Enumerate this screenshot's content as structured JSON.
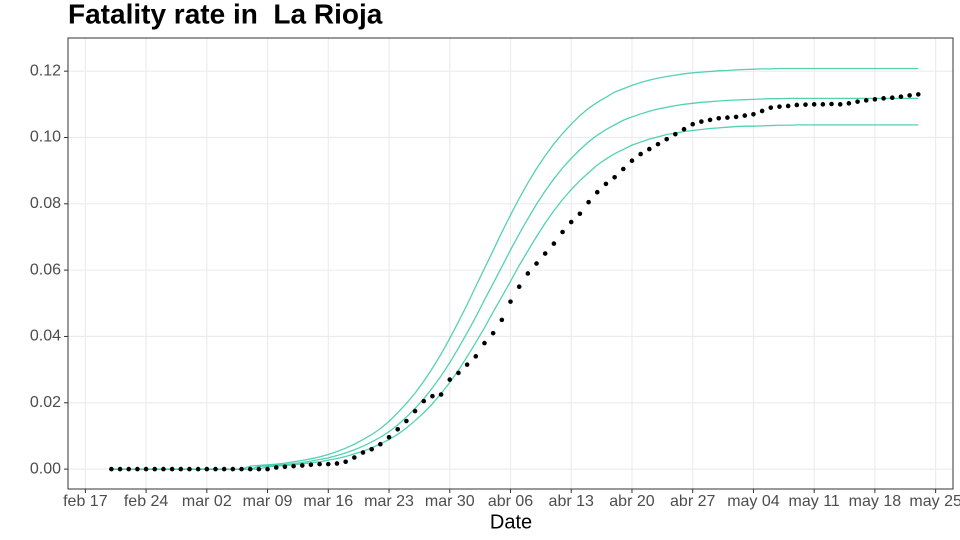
{
  "chart_data": {
    "type": "line",
    "title": "Fatality rate in  La Rioja",
    "x_label": "Date",
    "x": [
      "02-20",
      "02-21",
      "02-22",
      "02-23",
      "02-24",
      "02-25",
      "02-26",
      "02-27",
      "02-28",
      "02-29",
      "03-01",
      "03-02",
      "03-03",
      "03-04",
      "03-05",
      "03-06",
      "03-07",
      "03-08",
      "03-09",
      "03-10",
      "03-11",
      "03-12",
      "03-13",
      "03-14",
      "03-15",
      "03-16",
      "03-17",
      "03-18",
      "03-19",
      "03-20",
      "03-21",
      "03-22",
      "03-23",
      "03-24",
      "03-25",
      "03-26",
      "03-27",
      "03-28",
      "03-29",
      "03-30",
      "03-31",
      "04-01",
      "04-02",
      "04-03",
      "04-04",
      "04-05",
      "04-06",
      "04-07",
      "04-08",
      "04-09",
      "04-10",
      "04-11",
      "04-12",
      "04-13",
      "04-14",
      "04-15",
      "04-16",
      "04-17",
      "04-18",
      "04-19",
      "04-20",
      "04-21",
      "04-22",
      "04-23",
      "04-24",
      "04-25",
      "04-26",
      "04-27",
      "04-28",
      "04-29",
      "04-30",
      "05-01",
      "05-02",
      "05-03",
      "05-04",
      "05-05",
      "05-06",
      "05-07",
      "05-08",
      "05-09",
      "05-10",
      "05-11",
      "05-12",
      "05-13",
      "05-14",
      "05-15",
      "05-16",
      "05-17",
      "05-18",
      "05-19",
      "05-20",
      "05-21",
      "05-22",
      "05-23"
    ],
    "series": [
      {
        "color": "#19c39b",
        "mode": "lines",
        "values": [
          0,
          0,
          0,
          0,
          0,
          0,
          0,
          0,
          0,
          0,
          0,
          0,
          0,
          0,
          0,
          0,
          0.0009,
          0.0011,
          0.0013,
          0.0015,
          0.0018,
          0.0022,
          0.0026,
          0.0031,
          0.0037,
          0.0044,
          0.0053,
          0.0063,
          0.0075,
          0.0089,
          0.0104,
          0.0122,
          0.0144,
          0.017,
          0.0198,
          0.0229,
          0.0265,
          0.0304,
          0.0347,
          0.0394,
          0.0444,
          0.0496,
          0.0551,
          0.0605,
          0.0659,
          0.0714,
          0.0766,
          0.0816,
          0.0863,
          0.0906,
          0.0945,
          0.0981,
          0.1012,
          0.104,
          0.1066,
          0.1088,
          0.1106,
          0.1121,
          0.1137,
          0.1147,
          0.1157,
          0.1166,
          0.1173,
          0.1179,
          0.1184,
          0.1188,
          0.1192,
          0.1195,
          0.1197,
          0.1199,
          0.1201,
          0.1202,
          0.1204,
          0.1205,
          0.1206,
          0.1207,
          0.1207,
          0.1208,
          0.1208,
          0.1208,
          0.1208,
          0.1208,
          0.1208,
          0.1208,
          0.1208,
          0.1208,
          0.1208,
          0.1208,
          0.1208,
          0.1208,
          0.1208,
          0.1208,
          0.1208,
          0.1208
        ]
      },
      {
        "color": "#19c39b",
        "mode": "lines",
        "values": [
          0,
          0,
          0,
          0,
          0,
          0,
          0,
          0,
          0,
          0,
          0,
          0,
          0,
          0,
          0,
          0,
          0,
          0.0008,
          0.001,
          0.0012,
          0.0014,
          0.0017,
          0.002,
          0.0024,
          0.0029,
          0.0034,
          0.0041,
          0.0049,
          0.0058,
          0.0069,
          0.0082,
          0.0096,
          0.0113,
          0.0133,
          0.0157,
          0.0183,
          0.0212,
          0.0245,
          0.0281,
          0.0321,
          0.0365,
          0.0411,
          0.0459,
          0.051,
          0.056,
          0.061,
          0.0661,
          0.0709,
          0.0755,
          0.0799,
          0.0839,
          0.0875,
          0.0908,
          0.0937,
          0.0963,
          0.0987,
          0.1007,
          0.1024,
          0.1038,
          0.1052,
          0.1062,
          0.1071,
          0.1079,
          0.1086,
          0.1091,
          0.1096,
          0.11,
          0.1103,
          0.1106,
          0.1108,
          0.111,
          0.1112,
          0.1113,
          0.1114,
          0.1115,
          0.1116,
          0.1117,
          0.1117,
          0.1118,
          0.1118,
          0.1118,
          0.1118,
          0.1118,
          0.1118,
          0.1118,
          0.1118,
          0.1118,
          0.1118,
          0.1118,
          0.1118,
          0.1118,
          0.1118,
          0.1118,
          0.1118
        ]
      },
      {
        "color": "#19c39b",
        "mode": "lines",
        "values": [
          0,
          0,
          0,
          0,
          0,
          0,
          0,
          0,
          0,
          0,
          0,
          0,
          0,
          0,
          0,
          0,
          0,
          0,
          0.0007,
          0.0009,
          0.0011,
          0.0013,
          0.0016,
          0.0019,
          0.0022,
          0.0027,
          0.0032,
          0.0038,
          0.0046,
          0.0054,
          0.0064,
          0.0076,
          0.0089,
          0.0105,
          0.0124,
          0.0146,
          0.017,
          0.0197,
          0.0228,
          0.0261,
          0.0298,
          0.0339,
          0.0382,
          0.0426,
          0.0474,
          0.052,
          0.0566,
          0.0614,
          0.0658,
          0.0701,
          0.0742,
          0.0779,
          0.0813,
          0.0843,
          0.087,
          0.0894,
          0.0917,
          0.0935,
          0.0951,
          0.0964,
          0.0977,
          0.0986,
          0.0995,
          0.1002,
          0.1009,
          0.1013,
          0.1018,
          0.1021,
          0.1024,
          0.1027,
          0.1029,
          0.1031,
          0.1033,
          0.1034,
          0.1034,
          0.1035,
          0.1036,
          0.1037,
          0.1037,
          0.1038,
          0.1038,
          0.1038,
          0.1038,
          0.1038,
          0.1038,
          0.1038,
          0.1038,
          0.1038,
          0.1038,
          0.1038,
          0.1038,
          0.1038,
          0.1038,
          0.1038
        ]
      },
      {
        "color": "#000000",
        "mode": "markers",
        "values": [
          0,
          0,
          0,
          0,
          0,
          0,
          0,
          0,
          0,
          0,
          0,
          0,
          0,
          0,
          0,
          0,
          0,
          0,
          0,
          0.0005,
          0.0007,
          0.0009,
          0.0011,
          0.0013,
          0.0015,
          0.0015,
          0.0017,
          0.0022,
          0.0035,
          0.005,
          0.006,
          0.0075,
          0.0096,
          0.012,
          0.0145,
          0.0175,
          0.0205,
          0.022,
          0.0225,
          0.027,
          0.029,
          0.0315,
          0.034,
          0.038,
          0.041,
          0.045,
          0.0505,
          0.055,
          0.059,
          0.062,
          0.065,
          0.068,
          0.0715,
          0.0745,
          0.077,
          0.0805,
          0.0835,
          0.086,
          0.088,
          0.0905,
          0.093,
          0.095,
          0.0965,
          0.098,
          0.0995,
          0.101,
          0.1025,
          0.104,
          0.1048,
          0.1053,
          0.1058,
          0.106,
          0.1062,
          0.1066,
          0.107,
          0.108,
          0.109,
          0.1093,
          0.1095,
          0.1098,
          0.1099,
          0.11,
          0.11,
          0.1101,
          0.11,
          0.1103,
          0.1108,
          0.1112,
          0.1115,
          0.1118,
          0.112,
          0.1123,
          0.1127,
          0.113
        ]
      }
    ],
    "xlim": [
      "02-15",
      "05-27"
    ],
    "xticks": [
      {
        "value": "02-17",
        "label": "feb 17"
      },
      {
        "value": "02-24",
        "label": "feb 24"
      },
      {
        "value": "03-02",
        "label": "mar 02"
      },
      {
        "value": "03-09",
        "label": "mar 09"
      },
      {
        "value": "03-16",
        "label": "mar 16"
      },
      {
        "value": "03-23",
        "label": "mar 23"
      },
      {
        "value": "03-30",
        "label": "mar 30"
      },
      {
        "value": "04-06",
        "label": "abr 06"
      },
      {
        "value": "04-13",
        "label": "abr 13"
      },
      {
        "value": "04-20",
        "label": "abr 20"
      },
      {
        "value": "04-27",
        "label": "abr 27"
      },
      {
        "value": "05-04",
        "label": "may 04"
      },
      {
        "value": "05-11",
        "label": "may 11"
      },
      {
        "value": "05-18",
        "label": "may 18"
      },
      {
        "value": "05-25",
        "label": "may 25"
      }
    ],
    "ylim": [
      -0.006,
      0.13
    ],
    "yticks": [
      {
        "value": 0,
        "label": "0.00"
      },
      {
        "value": 0.02,
        "label": "0.02"
      },
      {
        "value": 0.04,
        "label": "0.04"
      },
      {
        "value": 0.06,
        "label": "0.06"
      },
      {
        "value": 0.08,
        "label": "0.08"
      },
      {
        "value": 0.1,
        "label": "0.10"
      },
      {
        "value": 0.12,
        "label": "0.12"
      }
    ],
    "grid": true
  }
}
